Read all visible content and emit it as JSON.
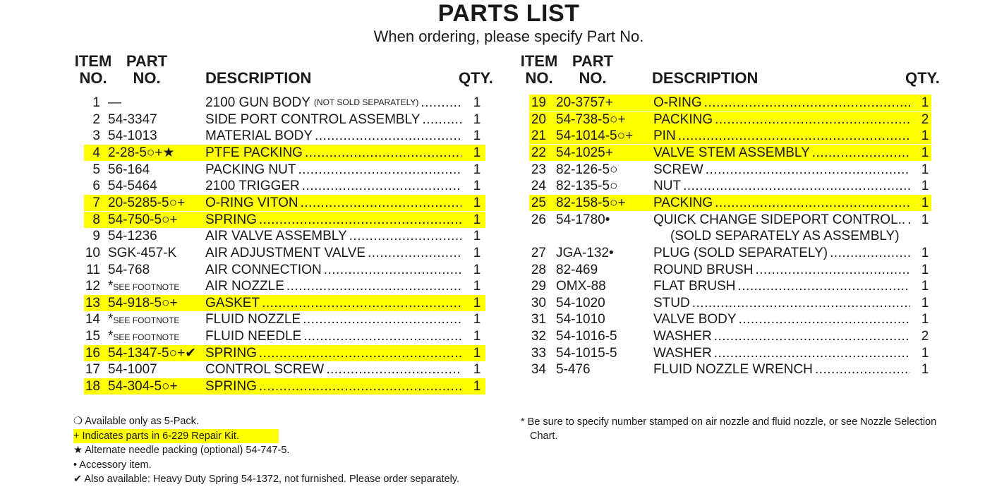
{
  "title": "PARTS LIST",
  "subtitle": "When ordering, please specify Part No.",
  "headers": {
    "item1": "ITEM",
    "item2": "NO.",
    "part1": "PART",
    "part2": "NO.",
    "desc": "DESCRIPTION",
    "qty": "QTY."
  },
  "highlight_color": "#ffff00",
  "left_rows": [
    {
      "item": "1",
      "part": "—",
      "desc": "2100 GUN BODY",
      "note": "(NOT SOLD SEPARATELY)",
      "qty": "1",
      "hl": false
    },
    {
      "item": "2",
      "part": "54-3347",
      "desc": "SIDE PORT CONTROL ASSEMBLY",
      "qty": "1",
      "hl": false
    },
    {
      "item": "3",
      "part": "54-1013",
      "desc": "MATERIAL BODY",
      "qty": "1",
      "hl": false
    },
    {
      "item": "4",
      "part": "2-28-5○+★",
      "desc": "PTFE PACKING",
      "qty": "1",
      "hl": true
    },
    {
      "item": "5",
      "part": "56-164",
      "desc": "PACKING NUT",
      "qty": "1",
      "hl": false
    },
    {
      "item": "6",
      "part": "54-5464",
      "desc": "2100 TRIGGER",
      "qty": "1",
      "hl": false
    },
    {
      "item": "7",
      "part": "20-5285-5○+",
      "desc": "O-RING VITON",
      "qty": "1",
      "hl": true
    },
    {
      "item": "8",
      "part": "54-750-5○+",
      "desc": "SPRING",
      "qty": "1",
      "hl": true
    },
    {
      "item": "9",
      "part": "54-1236",
      "desc": "AIR VALVE ASSEMBLY",
      "qty": "1",
      "hl": false
    },
    {
      "item": "10",
      "part": "SGK-457-K",
      "desc": "AIR ADJUSTMENT VALVE",
      "qty": "1",
      "hl": false
    },
    {
      "item": "11",
      "part": "54-768",
      "desc": "AIR CONNECTION",
      "qty": "1",
      "hl": false
    },
    {
      "item": "12",
      "part": "*SEE FOOTNOTE",
      "desc": "AIR NOZZLE",
      "qty": "1",
      "hl": false
    },
    {
      "item": "13",
      "part": "54-918-5○+",
      "desc": "GASKET",
      "qty": "1",
      "hl": true
    },
    {
      "item": "14",
      "part": "*SEE FOOTNOTE",
      "desc": "FLUID NOZZLE",
      "qty": "1",
      "hl": false
    },
    {
      "item": "15",
      "part": "*SEE FOOTNOTE",
      "desc": "FLUID NEEDLE",
      "qty": "1",
      "hl": false
    },
    {
      "item": "16",
      "part": "54-1347-5○+✔",
      "desc": "SPRING",
      "qty": "1",
      "hl": true
    },
    {
      "item": "17",
      "part": "54-1007",
      "desc": "CONTROL SCREW",
      "qty": "1",
      "hl": false
    },
    {
      "item": "18",
      "part": "54-304-5○+",
      "desc": "SPRING",
      "qty": "1",
      "hl": true
    }
  ],
  "right_rows": [
    {
      "item": "19",
      "part": "20-3757+",
      "desc": "O-RING",
      "qty": "1",
      "hl": true
    },
    {
      "item": "20",
      "part": "54-738-5○+",
      "desc": "PACKING",
      "qty": "2",
      "hl": true
    },
    {
      "item": "21",
      "part": "54-1014-5○+",
      "desc": "PIN",
      "qty": "1",
      "hl": true
    },
    {
      "item": "22",
      "part": "54-1025+",
      "desc": "VALVE STEM ASSEMBLY",
      "qty": "1",
      "hl": true
    },
    {
      "item": "23",
      "part": "82-126-5○",
      "desc": "SCREW",
      "qty": "1",
      "hl": false
    },
    {
      "item": "24",
      "part": "82-135-5○",
      "desc": "NUT",
      "qty": "1",
      "hl": false
    },
    {
      "item": "25",
      "part": "82-158-5○+",
      "desc": "PACKING",
      "qty": "1",
      "hl": true
    },
    {
      "item": "26",
      "part": "54-1780•",
      "desc": "QUICK CHANGE SIDEPORT CONTROL..",
      "qty": "1",
      "hl": false,
      "cont": "(SOLD SEPARATELY AS ASSEMBLY)"
    },
    {
      "item": "27",
      "part": "JGA-132•",
      "desc": "PLUG (SOLD SEPARATELY)",
      "qty": "1",
      "hl": false
    },
    {
      "item": "28",
      "part": "82-469",
      "desc": "ROUND BRUSH",
      "qty": "1",
      "hl": false
    },
    {
      "item": "29",
      "part": "OMX-88",
      "desc": "FLAT BRUSH",
      "qty": "1",
      "hl": false
    },
    {
      "item": "30",
      "part": "54-1020",
      "desc": "STUD",
      "qty": "1",
      "hl": false
    },
    {
      "item": "31",
      "part": "54-1010",
      "desc": "VALVE BODY",
      "qty": "1",
      "hl": false
    },
    {
      "item": "32",
      "part": "54-1016-5",
      "desc": "WASHER",
      "qty": "2",
      "hl": false
    },
    {
      "item": "33",
      "part": "54-1015-5",
      "desc": "WASHER",
      "qty": "1",
      "hl": false
    },
    {
      "item": "34",
      "part": "5-476",
      "desc": "FLUID NOZZLE WRENCH",
      "qty": "1",
      "hl": false
    }
  ],
  "footnotes": [
    {
      "text": "❍ Available only as 5-Pack.",
      "hl": false
    },
    {
      "text": "+ Indicates parts in 6-229 Repair Kit.",
      "hl": true
    },
    {
      "text": "★ Alternate needle packing (optional) 54-747-5.",
      "hl": false
    },
    {
      "text": " • Accessory item.",
      "hl": false
    },
    {
      "text": "✔ Also available: Heavy Duty Spring 54-1372, not furnished. Please order separately.",
      "hl": false
    }
  ],
  "footnote_right": "* Be sure to specify number stamped on air nozzle and fluid nozzle, or see Nozzle Selection Chart."
}
